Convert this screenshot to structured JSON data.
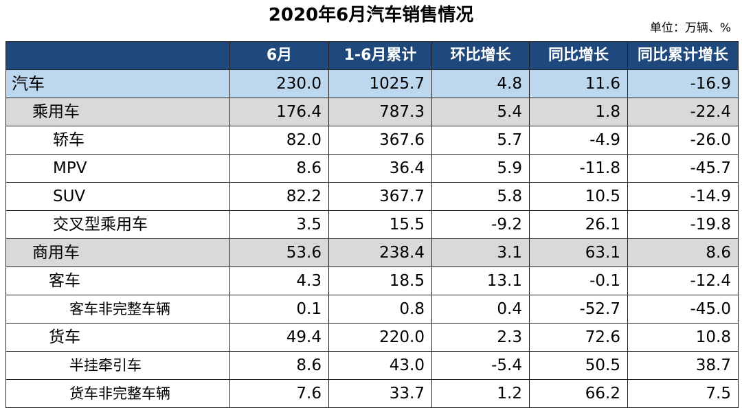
{
  "title": "2020年6月汽车销售情况",
  "unit_note": "单位：万辆、%",
  "chart_data": {
    "type": "table",
    "title": "2020年6月汽车销售情况",
    "unit": "单位：万辆、%",
    "columns": [
      "",
      "6月",
      "1-6月累计",
      "环比增长",
      "同比增长",
      "同比累计增长"
    ],
    "rows": [
      {
        "level": 0,
        "name": "汽车",
        "values": [
          "230.0",
          "1025.7",
          "4.8",
          "11.6",
          "-16.9"
        ]
      },
      {
        "level": 1,
        "name": "乘用车",
        "values": [
          "176.4",
          "787.3",
          "5.4",
          "1.8",
          "-22.4"
        ]
      },
      {
        "level": 2,
        "name": "轿车",
        "values": [
          "82.0",
          "367.6",
          "5.7",
          "-4.9",
          "-26.0"
        ]
      },
      {
        "level": 2,
        "name": "MPV",
        "values": [
          "8.6",
          "36.4",
          "5.9",
          "-11.8",
          "-45.7"
        ]
      },
      {
        "level": 2,
        "name": "SUV",
        "values": [
          "82.2",
          "367.7",
          "5.8",
          "10.5",
          "-14.9"
        ]
      },
      {
        "level": 2,
        "name": "交叉型乘用车",
        "values": [
          "3.5",
          "15.5",
          "-9.2",
          "26.1",
          "-19.8"
        ]
      },
      {
        "level": 1,
        "name": "商用车",
        "values": [
          "53.6",
          "238.4",
          "3.1",
          "63.1",
          "8.6"
        ]
      },
      {
        "level": 2,
        "name": "客车",
        "values": [
          "4.3",
          "18.5",
          "13.1",
          "-0.1",
          "-12.4"
        ],
        "sub": true
      },
      {
        "level": 3,
        "name": "客车非完整车辆",
        "values": [
          "0.1",
          "0.8",
          "0.4",
          "-52.7",
          "-45.0"
        ]
      },
      {
        "level": 2,
        "name": "货车",
        "values": [
          "49.4",
          "220.0",
          "2.3",
          "72.6",
          "10.8"
        ],
        "sub": true
      },
      {
        "level": 3,
        "name": "半挂牵引车",
        "values": [
          "8.6",
          "43.0",
          "-5.4",
          "50.5",
          "38.7"
        ]
      },
      {
        "level": 3,
        "name": "货车非完整车辆",
        "values": [
          "7.6",
          "33.7",
          "1.2",
          "66.2",
          "7.5"
        ]
      }
    ]
  },
  "colors": {
    "header_bg": "#1f497d",
    "header_text": "#ffffff",
    "total_row_bg": "#bdd7ee",
    "category_row_bg": "#d9d9d9",
    "row_bg": "#ffffff",
    "border": "#1f1f1f"
  }
}
